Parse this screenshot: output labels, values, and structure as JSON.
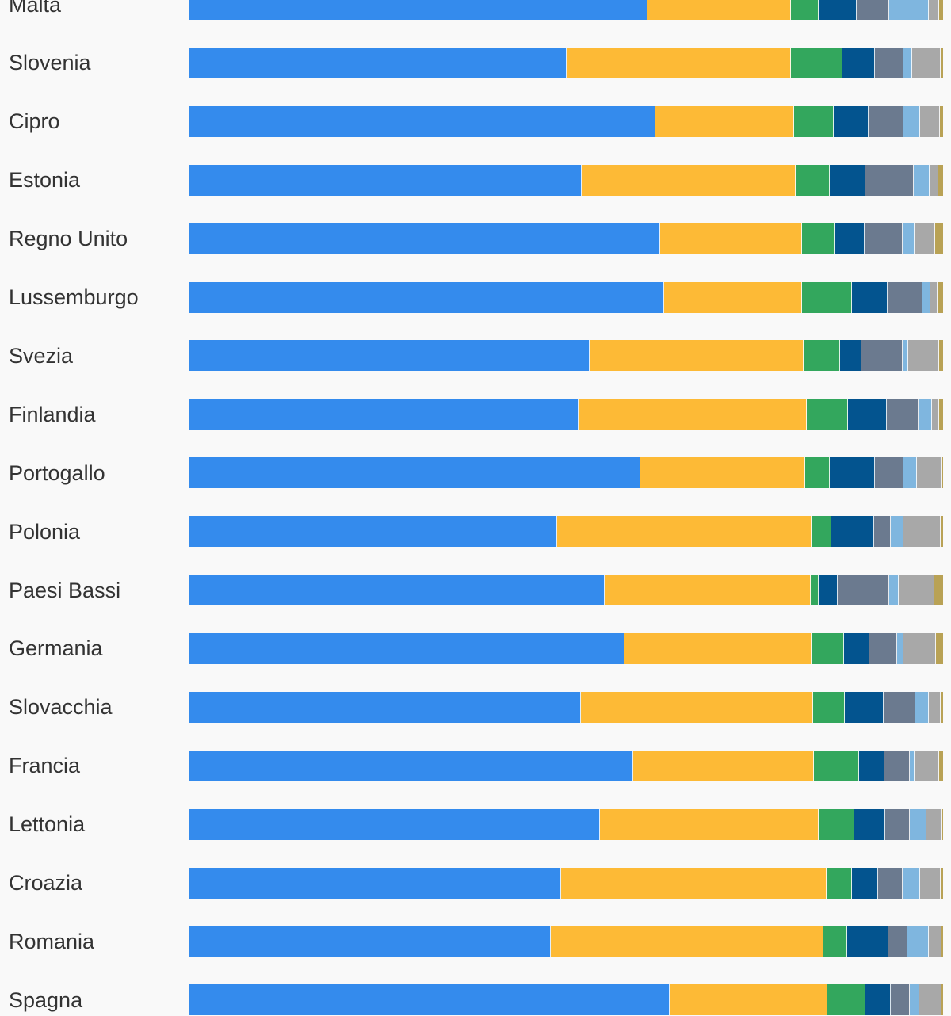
{
  "chart_data": {
    "type": "bar",
    "orientation": "horizontal",
    "stacked": true,
    "normalized": true,
    "colors": [
      "#348bed",
      "#fdba36",
      "#33a75d",
      "#03548f",
      "#6b7a8f",
      "#7fb6df",
      "#a8a8a8",
      "#b9a255"
    ],
    "categories": [
      "Malta",
      "Slovenia",
      "Cipro",
      "Estonia",
      "Regno Unito",
      "Lussemburgo",
      "Svezia",
      "Finlandia",
      "Portogallo",
      "Polonia",
      "Paesi Bassi",
      "Germania",
      "Slovacchia",
      "Francia",
      "Lettonia",
      "Croazia",
      "Romania",
      "Spagna"
    ],
    "series": [
      {
        "values": [
          60.8,
          50.0,
          61.8,
          52.0,
          62.5,
          63.0,
          53.1,
          51.6,
          59.8,
          48.8,
          55.1,
          57.7,
          51.9,
          58.9,
          54.5,
          49.3,
          48.0,
          63.7
        ]
      },
      {
        "values": [
          19.0,
          29.8,
          18.4,
          28.4,
          18.8,
          18.3,
          28.4,
          30.3,
          21.9,
          33.7,
          27.3,
          24.8,
          30.9,
          24.0,
          29.0,
          35.2,
          36.1,
          20.9
        ]
      },
      {
        "values": [
          3.7,
          6.8,
          5.3,
          4.6,
          4.3,
          6.6,
          4.8,
          5.5,
          3.3,
          2.7,
          1.1,
          4.4,
          4.2,
          6.0,
          4.7,
          3.4,
          3.2,
          5.1
        ]
      },
      {
        "values": [
          5.0,
          4.4,
          4.6,
          4.7,
          4.0,
          4.7,
          2.9,
          5.1,
          6.0,
          5.6,
          2.5,
          3.3,
          5.1,
          3.3,
          4.1,
          3.5,
          5.4,
          3.4
        ]
      },
      {
        "values": [
          4.3,
          3.7,
          4.6,
          6.4,
          5.0,
          4.7,
          5.4,
          4.2,
          3.7,
          2.3,
          6.9,
          3.7,
          4.2,
          3.4,
          3.3,
          3.2,
          2.6,
          2.5
        ]
      },
      {
        "values": [
          5.3,
          1.2,
          2.2,
          2.1,
          1.6,
          1.0,
          0.8,
          1.8,
          1.8,
          1.6,
          1.2,
          0.8,
          1.8,
          0.6,
          2.2,
          2.4,
          2.8,
          1.2
        ]
      },
      {
        "values": [
          1.4,
          3.8,
          2.7,
          1.2,
          2.8,
          1.0,
          4.1,
          1.0,
          3.4,
          5.0,
          4.7,
          4.4,
          1.6,
          3.3,
          2.1,
          2.7,
          1.7,
          3.0
        ]
      },
      {
        "values": [
          0.5,
          0.3,
          0.4,
          0.6,
          1.0,
          0.7,
          0.5,
          0.5,
          0.1,
          0.3,
          1.2,
          0.9,
          0.3,
          0.5,
          0.1,
          0.3,
          0.2,
          0.2
        ]
      }
    ],
    "xlim": [
      0,
      100
    ]
  }
}
